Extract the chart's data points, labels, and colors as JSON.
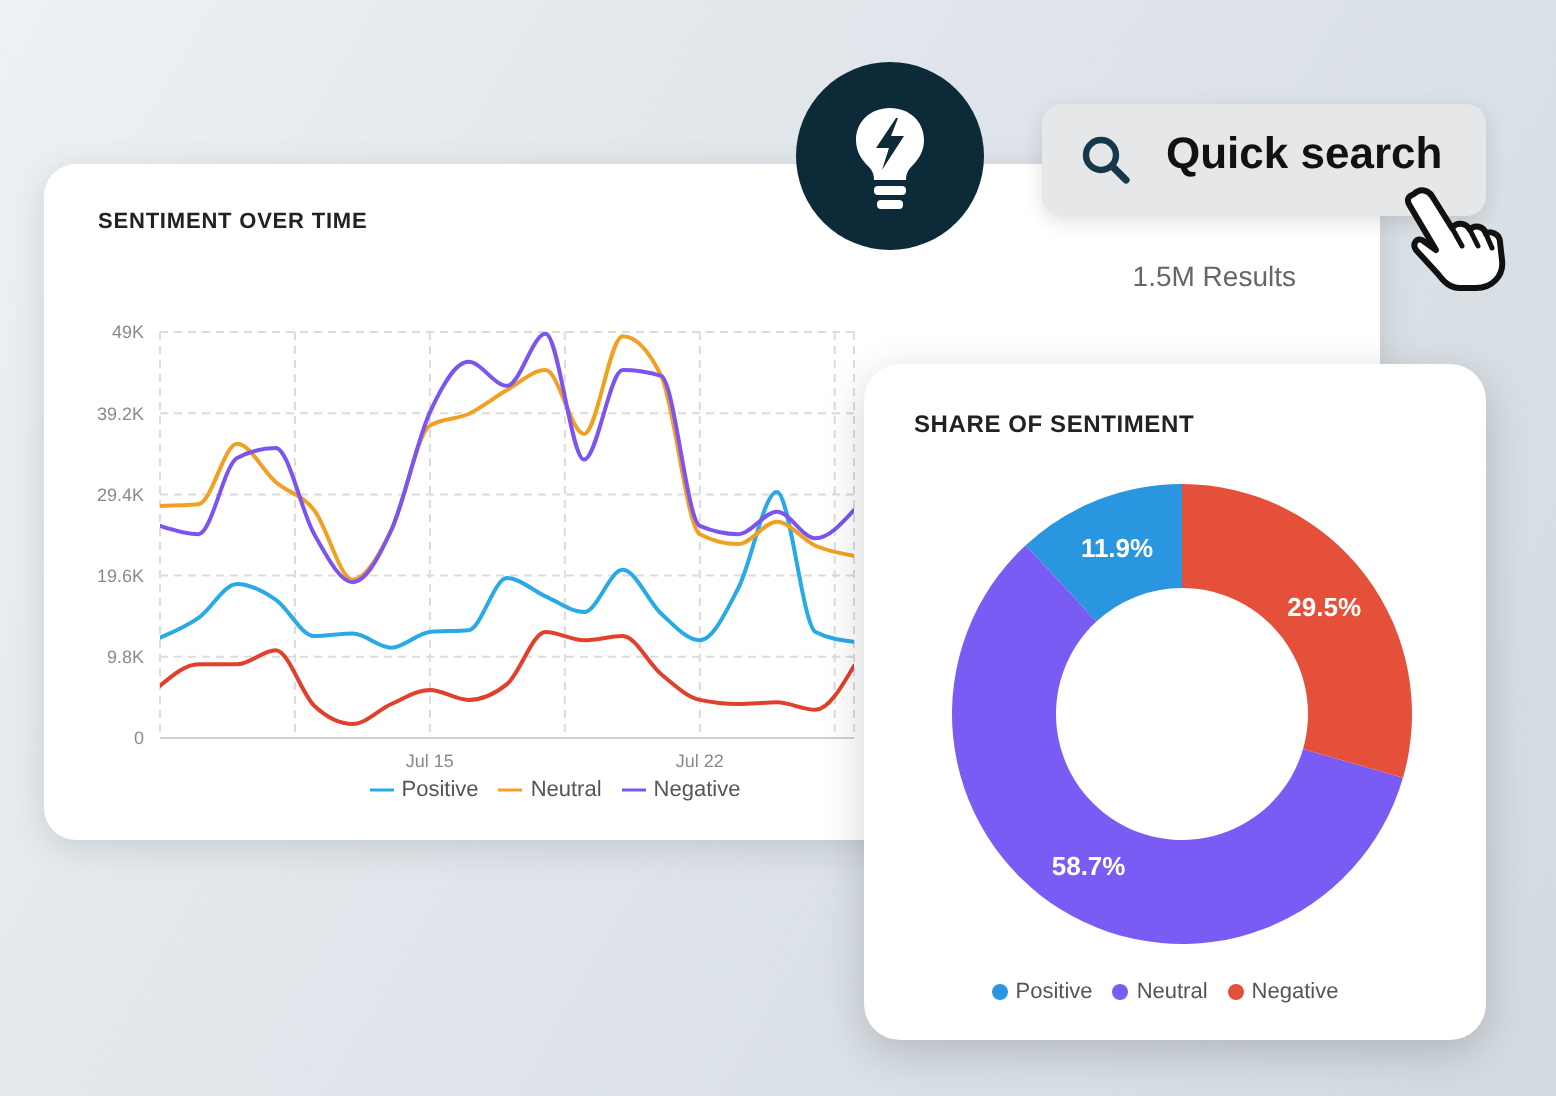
{
  "chart_data": [
    {
      "type": "line",
      "title": "SENTIMENT OVER TIME",
      "annotations": [
        "1.5M Results"
      ],
      "x": [
        "--07-08",
        "--07-09",
        "--07-10",
        "--07-11",
        "--07-12",
        "--07-13",
        "--07-14",
        "--07-15",
        "--07-16",
        "--07-17",
        "--07-18",
        "--07-19",
        "--07-20",
        "--07-21",
        "--07-22",
        "--07-23",
        "--07-24",
        "--07-25",
        "--07-26"
      ],
      "series": [
        {
          "name": "Positive",
          "color": "#29a9e6",
          "values": [
            12100,
            14500,
            18600,
            16700,
            12300,
            12600,
            10900,
            12800,
            13000,
            19300,
            17100,
            15200,
            20300,
            15000,
            11800,
            18100,
            29700,
            12800,
            11600
          ]
        },
        {
          "name": "Neutral",
          "color": "#f2a024",
          "values": [
            28000,
            28200,
            35500,
            30900,
            27500,
            19100,
            25100,
            37700,
            39100,
            42000,
            44400,
            36700,
            48500,
            43700,
            24600,
            23400,
            26100,
            23200,
            22000
          ]
        },
        {
          "name": "Negative",
          "color": "#7b55ee",
          "values": [
            25600,
            24600,
            33800,
            35000,
            24600,
            18800,
            25100,
            39300,
            45400,
            42500,
            48800,
            33600,
            44400,
            43700,
            25600,
            24600,
            27300,
            24100,
            27500
          ]
        },
        {
          "color": "#e0402c",
          "values": [
            6300,
            8900,
            8900,
            10600,
            3900,
            1700,
            4100,
            5800,
            4600,
            6500,
            12800,
            11800,
            12300,
            7700,
            4600,
            4100,
            4300,
            3400,
            8700
          ]
        }
      ],
      "xlim": [
        "--07-08",
        "--07-26"
      ],
      "xticks": [
        {
          "value": "--07-08",
          "label": null
        },
        {
          "value": "--07-11T12:00",
          "label": null
        },
        {
          "value": "--07-15",
          "label": "Jul 15"
        },
        {
          "value": "--07-18T12:00",
          "label": null
        },
        {
          "value": "--07-22",
          "label": "Jul 22"
        },
        {
          "value": "--07-25T12:00",
          "label": null
        }
      ],
      "ylim": [
        0,
        49000
      ],
      "yticks": [
        0,
        {
          "value": 9800,
          "label": "9.8K"
        },
        {
          "value": 19600,
          "label": "19.6K"
        },
        {
          "value": 29400,
          "label": "29.4K"
        },
        {
          "value": 39200,
          "label": "39.2K"
        },
        {
          "value": 49000,
          "label": "49K"
        }
      ],
      "grid": true,
      "legend": "bottom"
    },
    {
      "type": "donut",
      "title": "SHARE OF SENTIMENT",
      "categories": [
        "Positive",
        "Neutral",
        "Negative"
      ],
      "values": [
        11.9,
        58.7,
        29.5
      ],
      "colors": [
        "#2a96e0",
        "#7a5cf5",
        "#e5503a"
      ],
      "value_labels": [
        "11.9%",
        "58.7%",
        "29.5%"
      ],
      "legend": "bottom"
    },
    {
      "type": "other",
      "annotations": [
        "Quick search"
      ]
    }
  ]
}
